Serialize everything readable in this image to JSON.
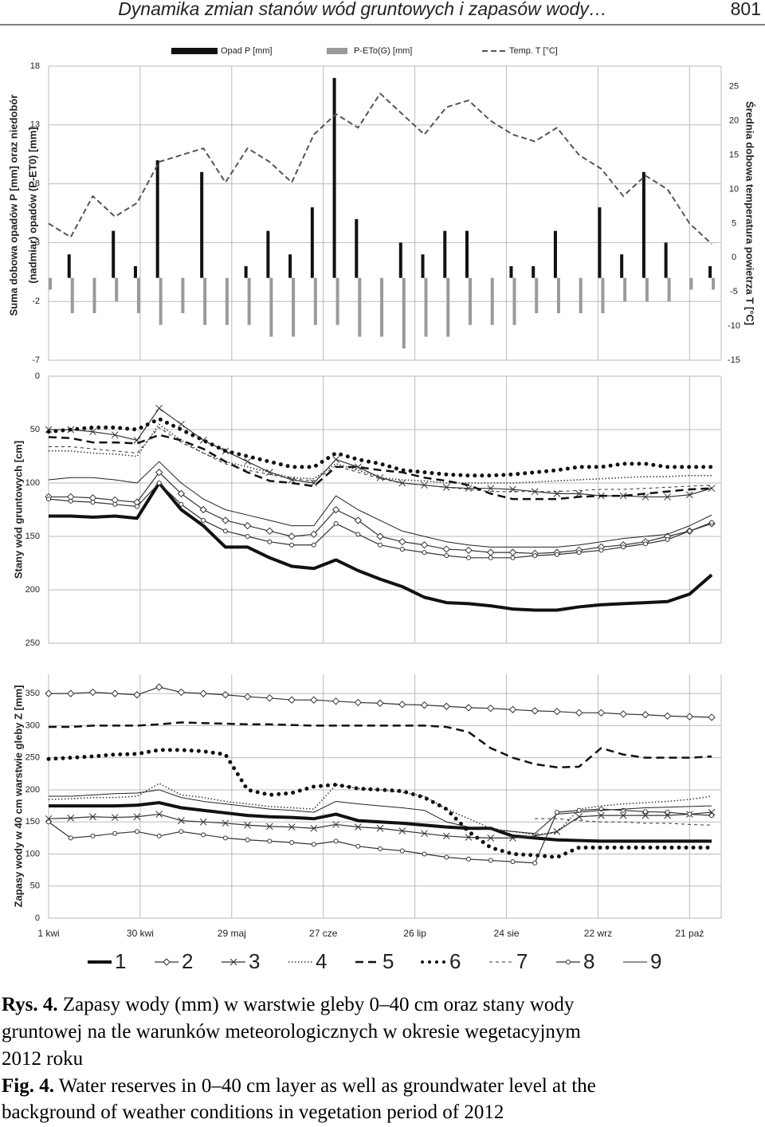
{
  "header": {
    "title": "Dynamika zmian stanów wód gruntowych i zapasów wody…",
    "page_number": "801"
  },
  "chart_data": [
    {
      "type": "bar",
      "y_label_lines": [
        "Suma dobowa opadów P [mm] oraz niedobór",
        "(nadmiar) opadów  (P-ET0) [mm]"
      ],
      "y2_label": "Średnia dobowa temperatura powietrza T [°C]",
      "x": [
        0,
        7,
        14,
        21,
        28,
        35,
        42,
        49,
        56,
        63,
        70,
        77,
        84,
        91,
        98,
        105,
        112,
        119,
        126,
        133,
        140,
        147,
        154,
        161,
        168,
        175,
        182,
        189,
        196,
        203,
        210
      ],
      "xlim": [
        0,
        213
      ],
      "ylim": [
        -7,
        18
      ],
      "yticks": [
        -7,
        -2,
        3,
        8,
        13,
        18
      ],
      "y2lim": [
        -15,
        28
      ],
      "y2ticks": [
        -15,
        -10,
        -5,
        0,
        5,
        10,
        15,
        20,
        25
      ],
      "grid": true,
      "series": [
        {
          "name": "Opad P [mm]",
          "color": "#111111",
          "values": [
            0,
            2,
            0,
            4,
            1,
            10,
            0,
            9,
            0,
            1,
            4,
            2,
            6,
            17,
            5,
            0,
            3,
            2,
            4,
            4,
            0,
            1,
            1,
            4,
            0,
            6,
            2,
            9,
            3,
            0,
            1
          ]
        },
        {
          "name": "P-ETo(G) [mm]",
          "color": "#9a9a9a",
          "values": [
            -1,
            -3,
            -3,
            -2,
            -3,
            -4,
            -3,
            -4,
            -4,
            -4,
            -5,
            -5,
            -4,
            -4,
            -5,
            -5,
            -6,
            -5,
            -5,
            -4,
            -4,
            -4,
            -3,
            -3,
            -3,
            -3,
            -2,
            -2,
            -2,
            -1,
            -1
          ]
        },
        {
          "name": "Temp. T [°C]",
          "color": "#555555",
          "axis": "y2",
          "values": [
            5,
            3,
            9,
            6,
            8,
            14,
            15,
            16,
            11,
            16,
            14,
            11,
            18,
            21,
            19,
            24,
            21,
            18,
            22,
            23,
            20,
            18,
            17,
            19,
            15,
            13,
            9,
            12,
            10,
            5,
            2
          ]
        }
      ]
    },
    {
      "type": "line",
      "y_label": "Stany wód gruntowych [cm]",
      "x": [
        0,
        7,
        14,
        21,
        28,
        35,
        42,
        49,
        56,
        63,
        70,
        77,
        84,
        91,
        98,
        105,
        112,
        119,
        126,
        133,
        140,
        147,
        154,
        161,
        168,
        175,
        182,
        189,
        196,
        203,
        210
      ],
      "xlim": [
        0,
        213
      ],
      "ylim": [
        250,
        0
      ],
      "yticks": [
        0,
        50,
        100,
        150,
        200,
        250
      ],
      "grid": true,
      "series": [
        {
          "color": "#111111",
          "values": [
            131,
            131,
            132,
            131,
            133,
            100,
            125,
            140,
            160,
            160,
            170,
            178,
            180,
            172,
            182,
            190,
            197,
            207,
            212,
            213,
            215,
            218,
            219,
            219,
            216,
            214,
            213,
            212,
            211,
            204,
            186
          ]
        },
        {
          "color": "#333333",
          "values": [
            113,
            113,
            114,
            116,
            118,
            90,
            110,
            125,
            135,
            140,
            145,
            150,
            148,
            125,
            135,
            150,
            155,
            158,
            162,
            163,
            165,
            165,
            166,
            165,
            163,
            160,
            158,
            155,
            150,
            145,
            138
          ]
        },
        {
          "color": "#333333",
          "values": [
            50,
            50,
            52,
            55,
            60,
            30,
            45,
            60,
            70,
            80,
            90,
            97,
            100,
            78,
            85,
            95,
            100,
            102,
            104,
            105,
            105,
            106,
            108,
            110,
            110,
            112,
            112,
            113,
            113,
            111,
            105
          ]
        },
        {
          "color": "#333333",
          "values": [
            70,
            70,
            72,
            73,
            75,
            45,
            60,
            72,
            80,
            85,
            90,
            95,
            96,
            82,
            88,
            95,
            97,
            98,
            100,
            100,
            100,
            100,
            99,
            98,
            97,
            96,
            95,
            94,
            94,
            93,
            93
          ]
        },
        {
          "color": "#111111",
          "values": [
            57,
            58,
            62,
            62,
            63,
            55,
            60,
            68,
            80,
            90,
            98,
            100,
            103,
            85,
            85,
            88,
            90,
            95,
            98,
            102,
            110,
            115,
            115,
            115,
            113,
            112,
            112,
            110,
            108,
            106,
            105
          ]
        },
        {
          "color": "#111111",
          "values": [
            52,
            50,
            48,
            48,
            50,
            40,
            50,
            60,
            70,
            75,
            80,
            85,
            85,
            72,
            78,
            82,
            88,
            90,
            92,
            93,
            93,
            92,
            90,
            88,
            85,
            85,
            82,
            82,
            85,
            85,
            85
          ]
        },
        {
          "color": "#333333",
          "values": [
            66,
            66,
            68,
            70,
            72,
            48,
            62,
            72,
            82,
            88,
            92,
            96,
            98,
            84,
            90,
            96,
            100,
            102,
            104,
            106,
            108,
            108,
            108,
            108,
            107,
            106,
            106,
            105,
            104,
            103,
            102
          ]
        },
        {
          "color": "#333333",
          "values": [
            115,
            117,
            118,
            120,
            122,
            100,
            120,
            135,
            145,
            150,
            155,
            158,
            158,
            138,
            148,
            158,
            162,
            165,
            168,
            170,
            170,
            170,
            168,
            167,
            165,
            163,
            160,
            157,
            153,
            145,
            137
          ]
        },
        {
          "color": "#222222",
          "values": [
            97,
            95,
            95,
            97,
            100,
            80,
            100,
            115,
            125,
            130,
            135,
            140,
            140,
            112,
            125,
            135,
            145,
            150,
            155,
            158,
            160,
            160,
            160,
            160,
            158,
            155,
            152,
            150,
            148,
            140,
            130
          ]
        }
      ]
    },
    {
      "type": "line",
      "y_label": "Zapasy wody w 40 cm warstwie gleby Z [mm]",
      "x": [
        0,
        7,
        14,
        21,
        28,
        35,
        42,
        49,
        56,
        63,
        70,
        77,
        84,
        91,
        98,
        105,
        112,
        119,
        126,
        133,
        140,
        147,
        154,
        161,
        168,
        175,
        182,
        189,
        196,
        203,
        210
      ],
      "xlim": [
        0,
        213
      ],
      "ylim": [
        0,
        380
      ],
      "yticks": [
        0,
        50,
        100,
        150,
        200,
        250,
        300,
        350
      ],
      "grid": true,
      "xticks": [
        {
          "value": 0,
          "label": "1 kwi"
        },
        {
          "value": 29,
          "label": "30 kwi"
        },
        {
          "value": 58,
          "label": "29 maj"
        },
        {
          "value": 87,
          "label": "27 cze"
        },
        {
          "value": 116,
          "label": "26 lip"
        },
        {
          "value": 145,
          "label": "24 sie"
        },
        {
          "value": 174,
          "label": "22 wrz"
        },
        {
          "value": 203,
          "label": "21 paź"
        }
      ],
      "series": [
        {
          "name": "1",
          "color": "#111111",
          "values": [
            175,
            175,
            175,
            175,
            176,
            180,
            172,
            168,
            164,
            160,
            158,
            157,
            155,
            162,
            152,
            150,
            148,
            145,
            142,
            140,
            140,
            128,
            125,
            122,
            121,
            120,
            120,
            120,
            120,
            120,
            120
          ]
        },
        {
          "name": "2",
          "color": "#333333",
          "values": [
            350,
            350,
            352,
            350,
            348,
            360,
            352,
            350,
            348,
            345,
            343,
            340,
            340,
            338,
            336,
            335,
            333,
            332,
            330,
            328,
            327,
            325,
            323,
            322,
            320,
            320,
            318,
            317,
            315,
            314,
            313
          ]
        },
        {
          "name": "3",
          "color": "#333333",
          "values": [
            155,
            156,
            158,
            157,
            158,
            162,
            152,
            150,
            148,
            145,
            143,
            142,
            140,
            146,
            142,
            140,
            136,
            132,
            128,
            126,
            125,
            125,
            128,
            135,
            158,
            160,
            160,
            160,
            160,
            162,
            165
          ]
        },
        {
          "name": "4",
          "color": "#333333",
          "values": [
            185,
            186,
            188,
            188,
            190,
            210,
            192,
            188,
            182,
            178,
            174,
            172,
            170,
            208,
            202,
            200,
            196,
            190,
            170,
            155,
            140,
            135,
            130,
            133,
            170,
            175,
            178,
            180,
            182,
            185,
            190
          ]
        },
        {
          "name": "5",
          "color": "#111111",
          "values": [
            298,
            298,
            300,
            300,
            300,
            302,
            305,
            304,
            303,
            302,
            302,
            301,
            300,
            300,
            300,
            300,
            300,
            300,
            298,
            290,
            265,
            250,
            240,
            235,
            236,
            265,
            255,
            250,
            250,
            250,
            252
          ]
        },
        {
          "name": "6",
          "color": "#111111",
          "values": [
            248,
            250,
            252,
            255,
            256,
            262,
            262,
            260,
            255,
            200,
            192,
            195,
            205,
            208,
            202,
            200,
            198,
            188,
            170,
            135,
            110,
            100,
            98,
            95,
            110,
            110,
            110,
            110,
            110,
            110,
            110
          ]
        },
        {
          "name": "7",
          "color": "#333333",
          "values": [
            null,
            null,
            null,
            null,
            null,
            null,
            null,
            null,
            null,
            null,
            null,
            null,
            null,
            null,
            null,
            null,
            null,
            null,
            null,
            null,
            null,
            null,
            155,
            155,
            152,
            150,
            150,
            148,
            148,
            146,
            145
          ]
        },
        {
          "name": "8",
          "color": "#333333",
          "values": [
            150,
            125,
            128,
            132,
            135,
            128,
            135,
            130,
            125,
            122,
            120,
            118,
            115,
            120,
            112,
            108,
            105,
            100,
            95,
            92,
            90,
            88,
            86,
            165,
            168,
            170,
            168,
            166,
            165,
            162,
            160
          ]
        },
        {
          "name": "9",
          "color": "#222222",
          "values": [
            190,
            190,
            192,
            194,
            195,
            200,
            188,
            182,
            178,
            174,
            170,
            168,
            165,
            182,
            178,
            175,
            172,
            168,
            150,
            142,
            138,
            135,
            132,
            162,
            165,
            168,
            170,
            172,
            173,
            174,
            175
          ]
        }
      ]
    }
  ],
  "caption": {
    "pl_label": "Rys. 4.",
    "pl_lines": [
      "Zapasy wody (mm) w warstwie gleby 0–40 cm oraz stany wody",
      "gruntowej na tle warunków meteorologicznych w okresie wegetacyjnym",
      "2012 roku"
    ],
    "en_label": "Fig. 4.",
    "en_lines": [
      "Water reserves in 0–40 cm layer as well as groundwater level at the",
      "background of weather conditions in vegetation period of 2012"
    ]
  }
}
